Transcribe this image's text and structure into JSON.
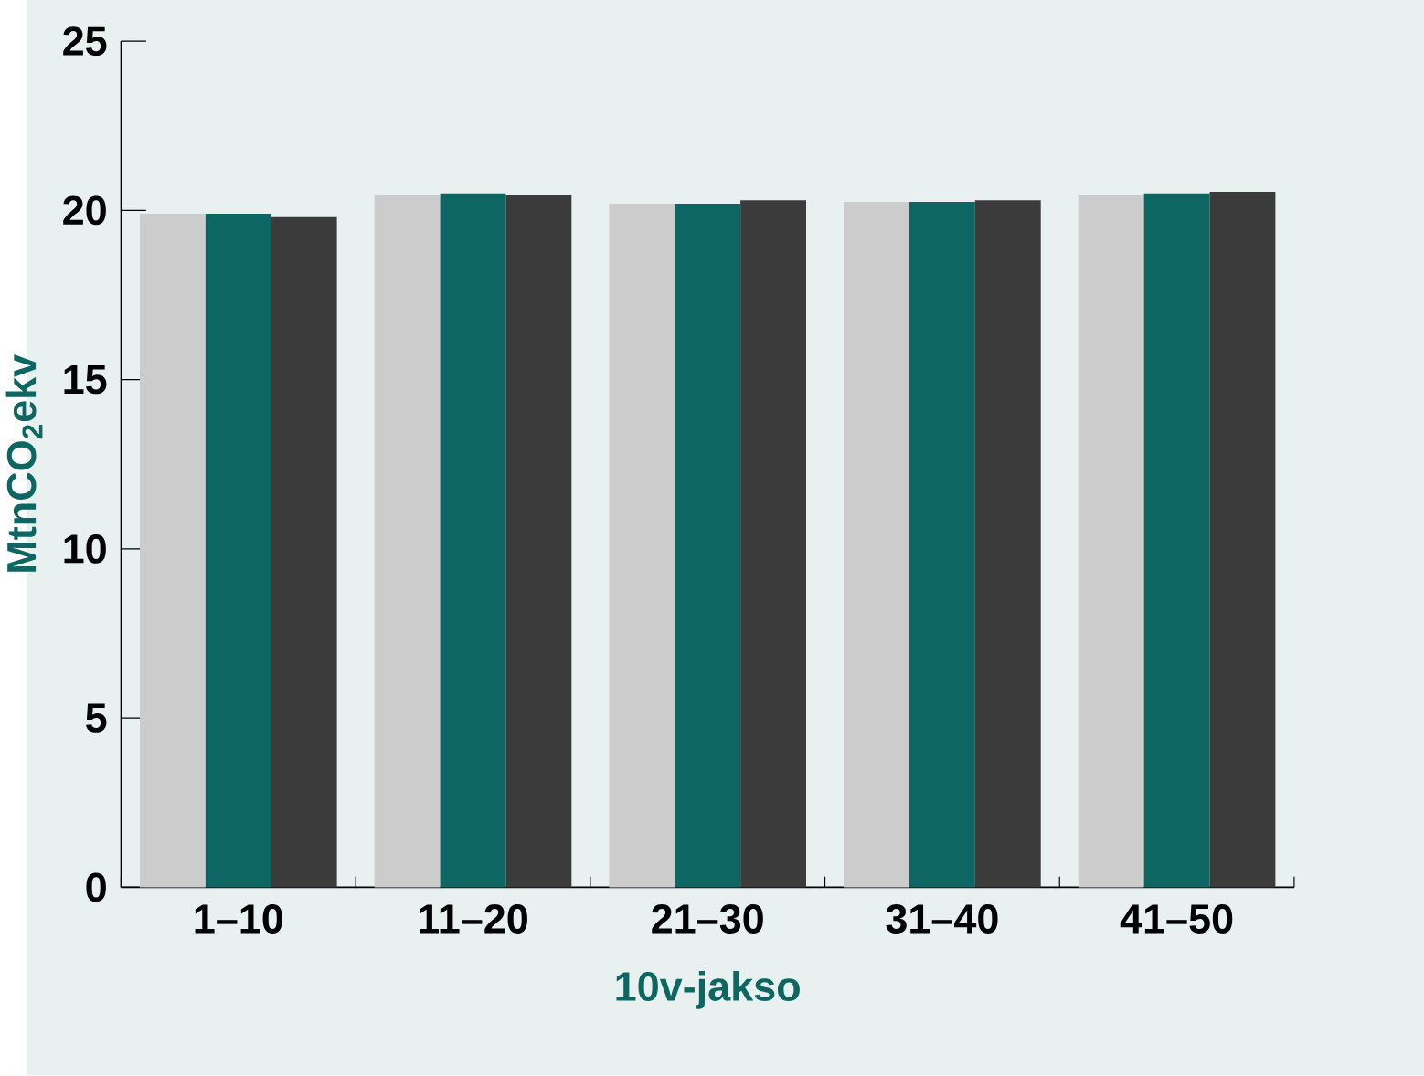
{
  "chart_data": {
    "type": "bar",
    "xlabel": "10v-jakso",
    "ylabel": "MtnCO$_{2}$ekv",
    "categories": [
      "1–10",
      "11–20",
      "21–30",
      "31–40",
      "41–50"
    ],
    "series": [
      {
        "color": "#cccccc",
        "values": [
          19.9,
          20.45,
          20.2,
          20.25,
          20.45
        ]
      },
      {
        "color": "#0d6662",
        "values": [
          19.9,
          20.5,
          20.2,
          20.25,
          20.5
        ]
      },
      {
        "color": "#3b3b3b",
        "values": [
          19.8,
          20.45,
          20.3,
          20.3,
          20.55
        ]
      }
    ],
    "ylim": [
      0,
      25
    ],
    "yticks": [
      0,
      5,
      10,
      15,
      20,
      25
    ]
  }
}
